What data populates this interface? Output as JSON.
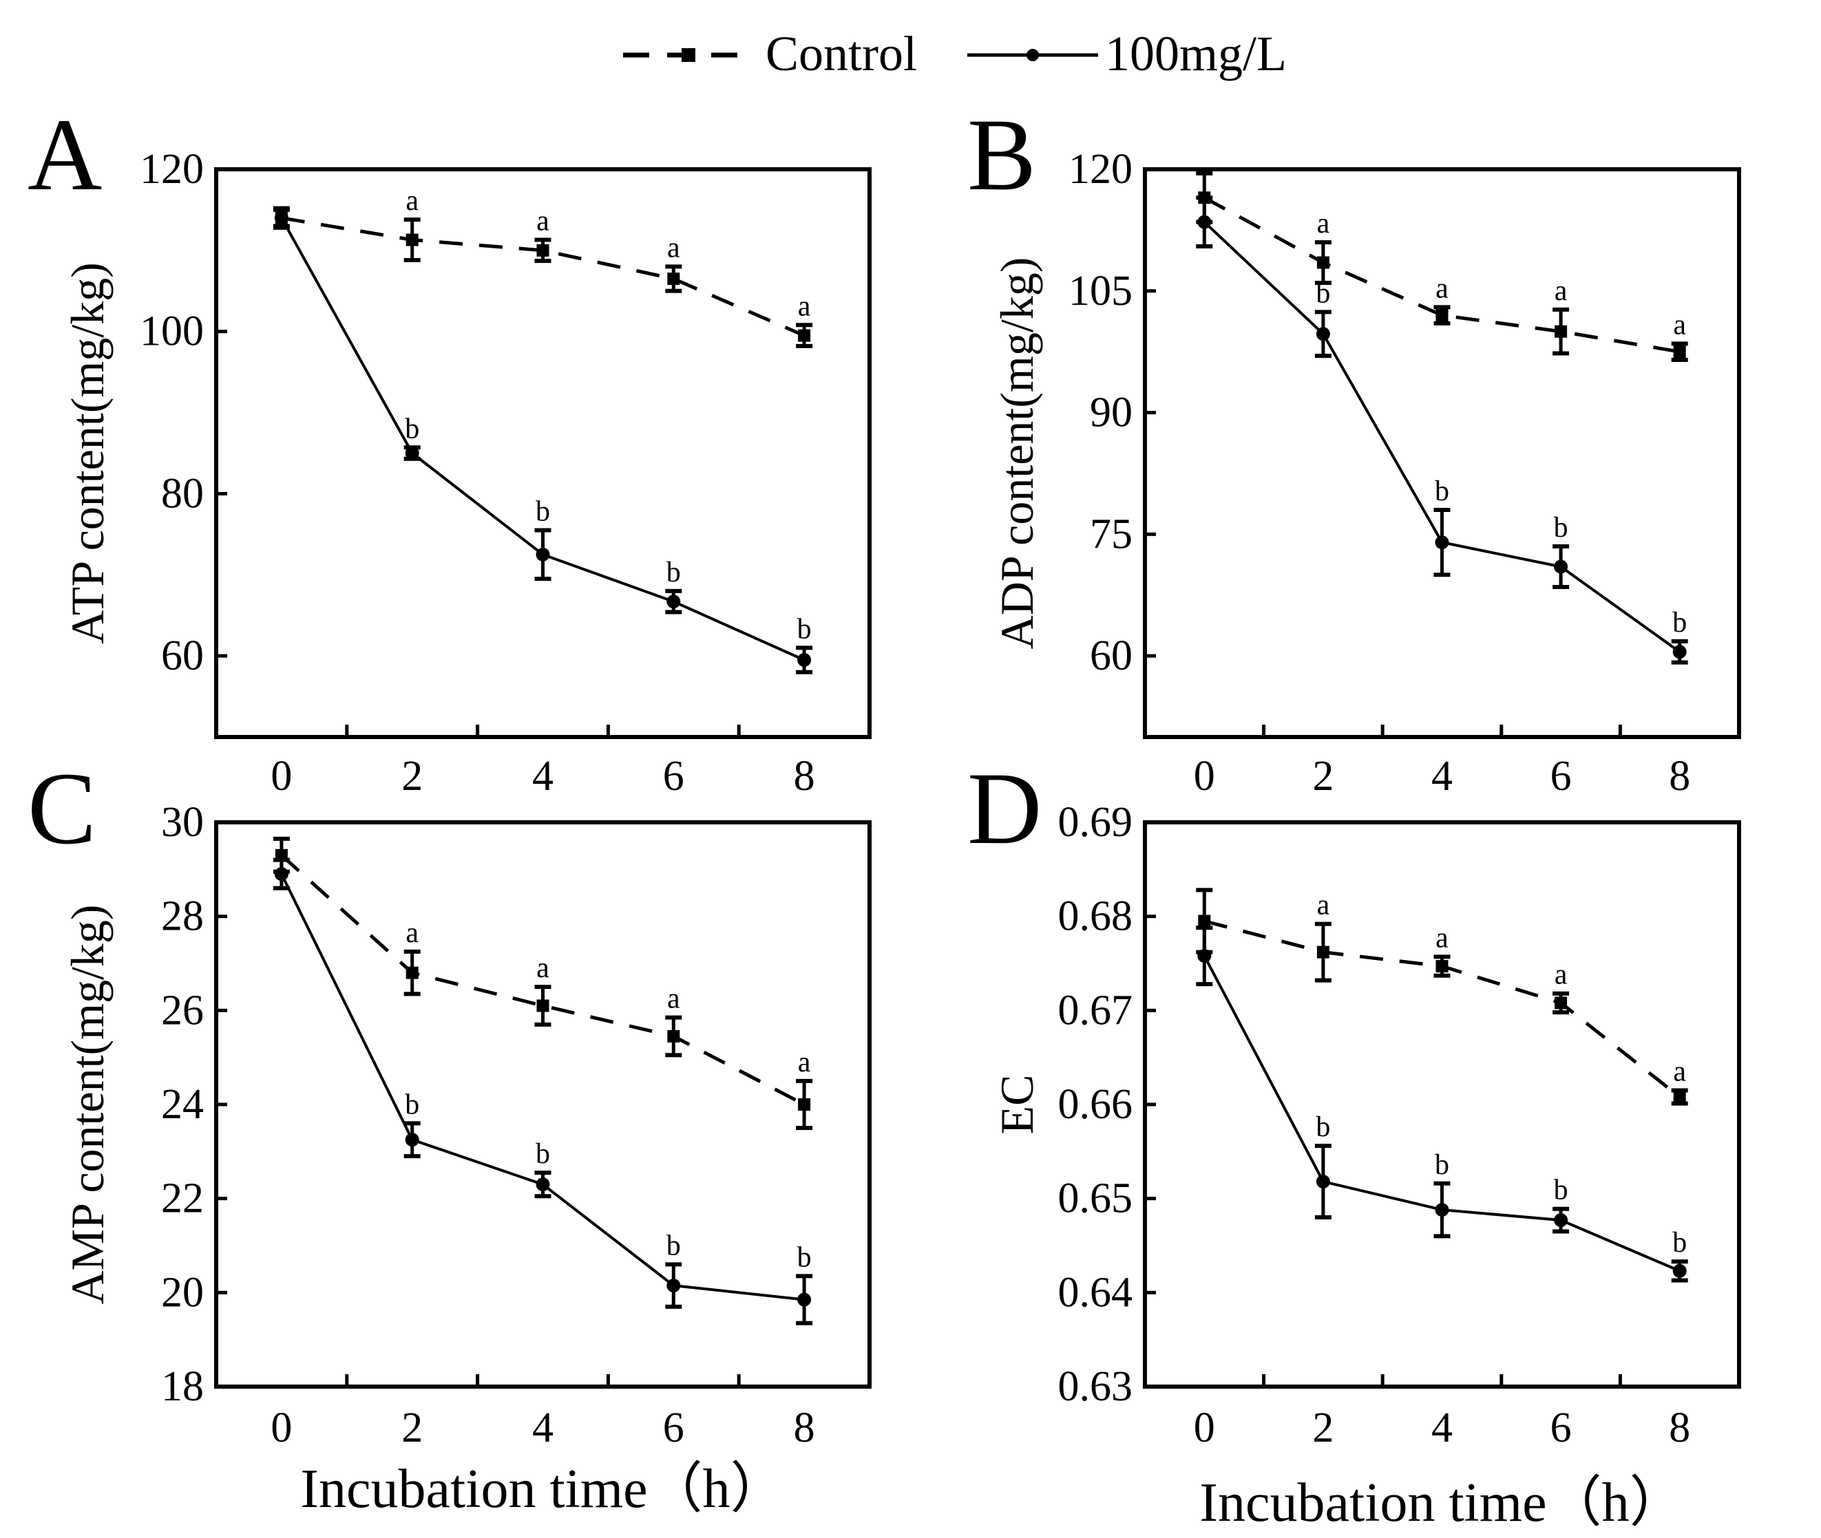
{
  "legend": {
    "items": [
      {
        "label": "Control",
        "style": "dashed"
      },
      {
        "label": "100mg/L",
        "style": "solid"
      }
    ]
  },
  "chart_data": [
    {
      "panel": "A",
      "type": "line",
      "ylabel": "ATP content(mg/kg)",
      "xlabel": "",
      "x": [
        0,
        2,
        4,
        6,
        8
      ],
      "xticks": [
        "0",
        "2",
        "4",
        "6",
        "8"
      ],
      "xlim": [
        -1,
        9
      ],
      "ylim": [
        50,
        120
      ],
      "yticks": [
        60,
        80,
        100,
        120
      ],
      "yticklabels": [
        "60",
        "80",
        "100",
        "120"
      ],
      "series": [
        {
          "name": "Control",
          "values": [
            114.0,
            111.3,
            110.0,
            106.5,
            99.5
          ],
          "errors": [
            1.2,
            2.5,
            1.3,
            1.5,
            1.3
          ],
          "letters": [
            "",
            "a",
            "a",
            "a",
            "a"
          ]
        },
        {
          "name": "100mg/L",
          "values": [
            114.0,
            85.0,
            72.5,
            66.7,
            59.5
          ],
          "errors": [
            1.0,
            0.7,
            3.0,
            1.3,
            1.5
          ],
          "letters": [
            "",
            "b",
            "b",
            "b",
            "b"
          ]
        }
      ]
    },
    {
      "panel": "B",
      "type": "line",
      "ylabel": "ADP content(mg/kg)",
      "xlabel": "",
      "x": [
        0,
        2,
        4,
        6,
        8
      ],
      "xticks": [
        "0",
        "2",
        "4",
        "6",
        "8"
      ],
      "xlim": [
        -1,
        9
      ],
      "ylim": [
        50,
        120
      ],
      "yticks": [
        60,
        75,
        90,
        105,
        120
      ],
      "yticklabels": [
        "60",
        "75",
        "90",
        "105",
        "120"
      ],
      "series": [
        {
          "name": "Control",
          "values": [
            116.5,
            108.5,
            102.0,
            100.0,
            97.5
          ],
          "errors": [
            3.0,
            2.5,
            1.0,
            2.7,
            1.0
          ],
          "letters": [
            "",
            "a",
            "a",
            "a",
            "a"
          ]
        },
        {
          "name": "100mg/L",
          "values": [
            113.5,
            99.7,
            74.0,
            71.0,
            60.5
          ],
          "errors": [
            3.0,
            2.7,
            4.0,
            2.5,
            1.3
          ],
          "letters": [
            "",
            "b",
            "b",
            "b",
            "b"
          ]
        }
      ]
    },
    {
      "panel": "C",
      "type": "line",
      "ylabel": "AMP content(mg/kg)",
      "xlabel": "Incubation time（h）",
      "x": [
        0,
        2,
        4,
        6,
        8
      ],
      "xticks": [
        "0",
        "2",
        "4",
        "6",
        "8"
      ],
      "xlim": [
        -1,
        9
      ],
      "ylim": [
        18,
        30
      ],
      "yticks": [
        18,
        20,
        22,
        24,
        26,
        28,
        30
      ],
      "yticklabels": [
        "18",
        "20",
        "22",
        "24",
        "26",
        "28",
        "30"
      ],
      "series": [
        {
          "name": "Control",
          "values": [
            29.3,
            26.8,
            26.1,
            25.45,
            24.0
          ],
          "errors": [
            0.35,
            0.45,
            0.4,
            0.4,
            0.5
          ],
          "letters": [
            "",
            "a",
            "a",
            "a",
            "a"
          ]
        },
        {
          "name": "100mg/L",
          "values": [
            28.9,
            23.25,
            22.3,
            20.15,
            19.85
          ],
          "errors": [
            0.3,
            0.35,
            0.25,
            0.45,
            0.5
          ],
          "letters": [
            "",
            "b",
            "b",
            "b",
            "b"
          ]
        }
      ]
    },
    {
      "panel": "D",
      "type": "line",
      "ylabel": "EC",
      "xlabel": "Incubation time（h）",
      "x": [
        0,
        2,
        4,
        6,
        8
      ],
      "xticks": [
        "0",
        "2",
        "4",
        "6",
        "8"
      ],
      "xlim": [
        -1,
        9
      ],
      "ylim": [
        0.63,
        0.69
      ],
      "yticks": [
        0.63,
        0.64,
        0.65,
        0.66,
        0.67,
        0.68,
        0.69
      ],
      "yticklabels": [
        "0.63",
        "0.64",
        "0.65",
        "0.66",
        "0.67",
        "0.68",
        "0.69"
      ],
      "series": [
        {
          "name": "Control",
          "values": [
            0.6795,
            0.6762,
            0.6747,
            0.6708,
            0.6608
          ],
          "errors": [
            0.0033,
            0.003,
            0.001,
            0.001,
            0.0007
          ],
          "letters": [
            "",
            "a",
            "a",
            "a",
            "a"
          ]
        },
        {
          "name": "100mg/L",
          "values": [
            0.6758,
            0.6518,
            0.6488,
            0.6477,
            0.6423
          ],
          "errors": [
            0.003,
            0.0038,
            0.0028,
            0.0012,
            0.001
          ],
          "letters": [
            "",
            "b",
            "b",
            "b",
            "b"
          ]
        }
      ]
    }
  ]
}
